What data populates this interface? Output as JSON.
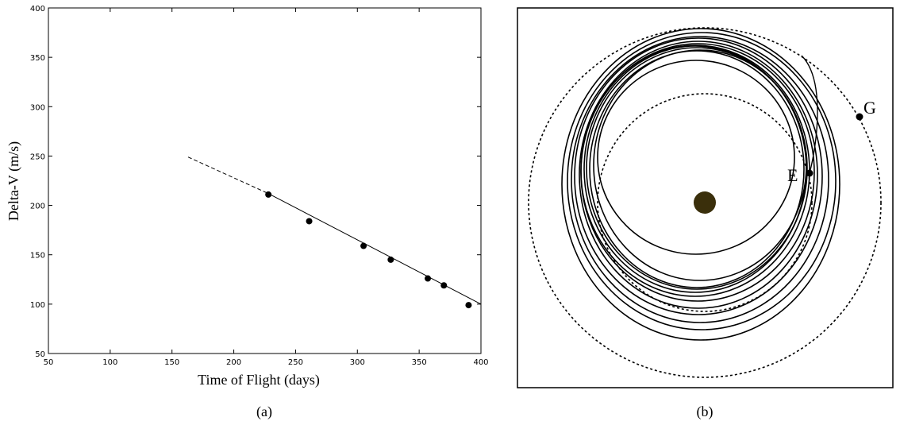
{
  "chart_data": [
    {
      "type": "scatter",
      "caption": "(a)",
      "xlabel": "Time of Flight (days)",
      "ylabel": "Delta-V (m/s)",
      "xlim": [
        50,
        400
      ],
      "ylim": [
        50,
        400
      ],
      "xticks": [
        "50",
        "100",
        "150",
        "200",
        "250",
        "300",
        "350",
        "400"
      ],
      "yticks": [
        "50",
        "100",
        "150",
        "200",
        "250",
        "300",
        "350",
        "400"
      ],
      "grid": false,
      "points": [
        {
          "x": 228,
          "y": 211
        },
        {
          "x": 261,
          "y": 184
        },
        {
          "x": 305,
          "y": 159
        },
        {
          "x": 327,
          "y": 145
        },
        {
          "x": 357,
          "y": 126
        },
        {
          "x": 370,
          "y": 119
        },
        {
          "x": 390,
          "y": 99
        }
      ],
      "fit_line": {
        "dashed": [
          [
            163,
            249
          ],
          [
            228,
            212
          ]
        ],
        "solid": [
          [
            228,
            212
          ],
          [
            400,
            100
          ]
        ]
      }
    },
    {
      "type": "diagram",
      "caption": "(b)",
      "labels": {
        "E": "E",
        "G": "G"
      },
      "colors": {
        "central_body": "#3a2f0b",
        "line": "#000000"
      }
    }
  ]
}
